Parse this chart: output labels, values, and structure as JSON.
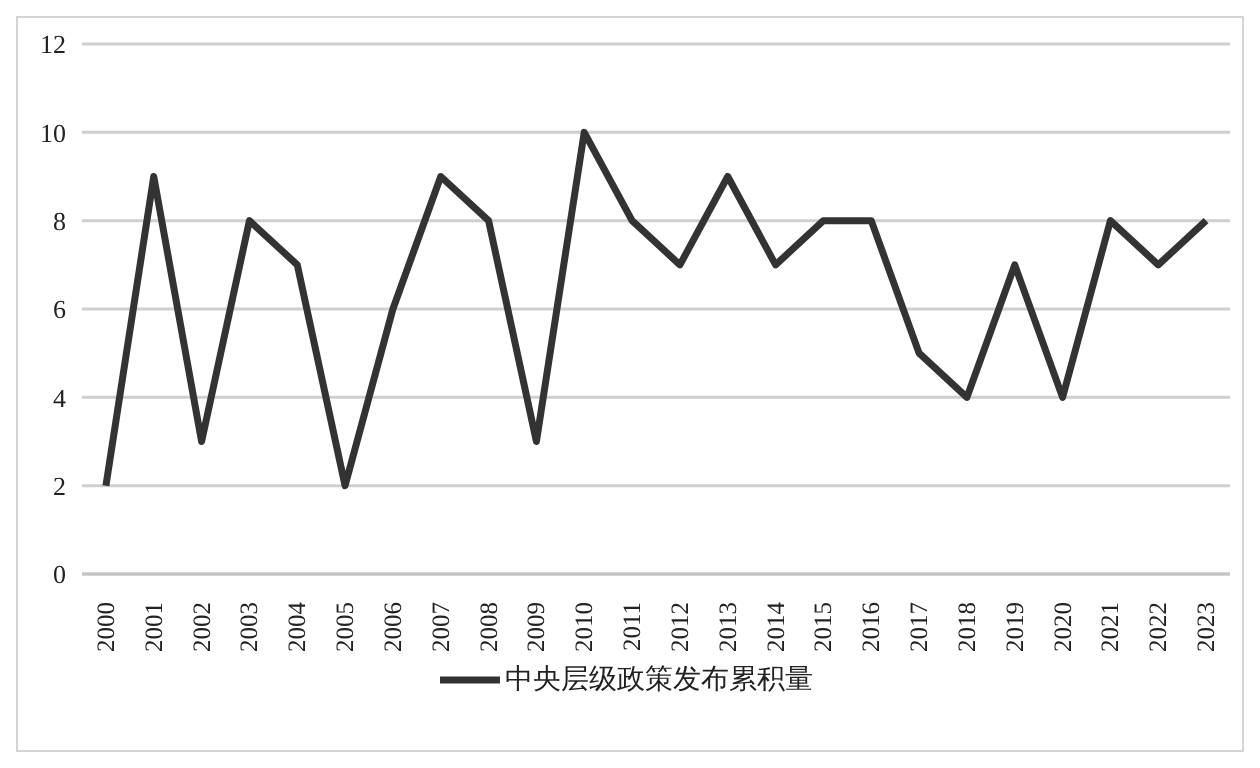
{
  "chart_data": {
    "type": "line",
    "categories": [
      "2000",
      "2001",
      "2002",
      "2003",
      "2004",
      "2005",
      "2006",
      "2007",
      "2008",
      "2009",
      "2010",
      "2011",
      "2012",
      "2013",
      "2014",
      "2015",
      "2016",
      "2017",
      "2018",
      "2019",
      "2020",
      "2021",
      "2022",
      "2023"
    ],
    "series": [
      {
        "name": "中央层级政策发布累积量",
        "color": "#333333",
        "values": [
          2,
          9,
          3,
          8,
          7,
          2,
          6,
          9,
          8,
          3,
          10,
          8,
          7,
          9,
          7,
          8,
          8,
          5,
          4,
          7,
          4,
          8,
          7,
          8
        ]
      }
    ],
    "ylim": [
      0,
      12
    ],
    "yticks": [
      0,
      2,
      4,
      6,
      8,
      10,
      12
    ],
    "grid": "y",
    "legend": "bottom",
    "marker": "none",
    "line_style": "solid"
  }
}
